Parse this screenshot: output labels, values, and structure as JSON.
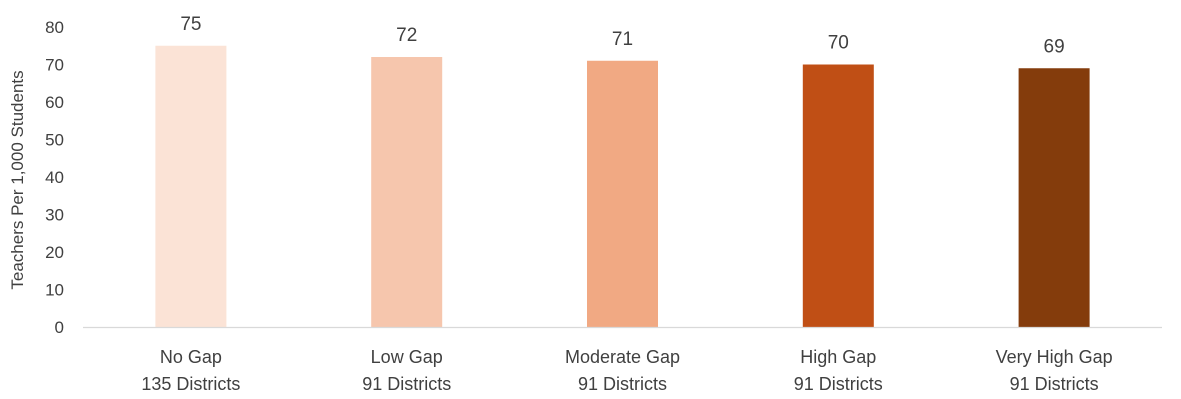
{
  "chart_data": {
    "type": "bar",
    "title": "",
    "xlabel": "",
    "ylabel": "Teachers Per 1,000 Students",
    "ylim": [
      0,
      80
    ],
    "yticks": [
      0,
      10,
      20,
      30,
      40,
      50,
      60,
      70,
      80
    ],
    "grid": false,
    "legend": "none",
    "categories": [
      {
        "name": "No Gap",
        "sub": "135 Districts"
      },
      {
        "name": "Low Gap",
        "sub": "91 Districts"
      },
      {
        "name": "Moderate Gap",
        "sub": "91 Districts"
      },
      {
        "name": "High Gap",
        "sub": "91 Districts"
      },
      {
        "name": "Very High Gap",
        "sub": "91 Districts"
      }
    ],
    "values": [
      75,
      72,
      71,
      70,
      69
    ],
    "bar_colors": [
      "#FBE3D6",
      "#F6C6AD",
      "#F1A983",
      "#C04F15",
      "#843C0C"
    ],
    "axis_color": "#D9D9D9",
    "text_color": "#404040"
  }
}
